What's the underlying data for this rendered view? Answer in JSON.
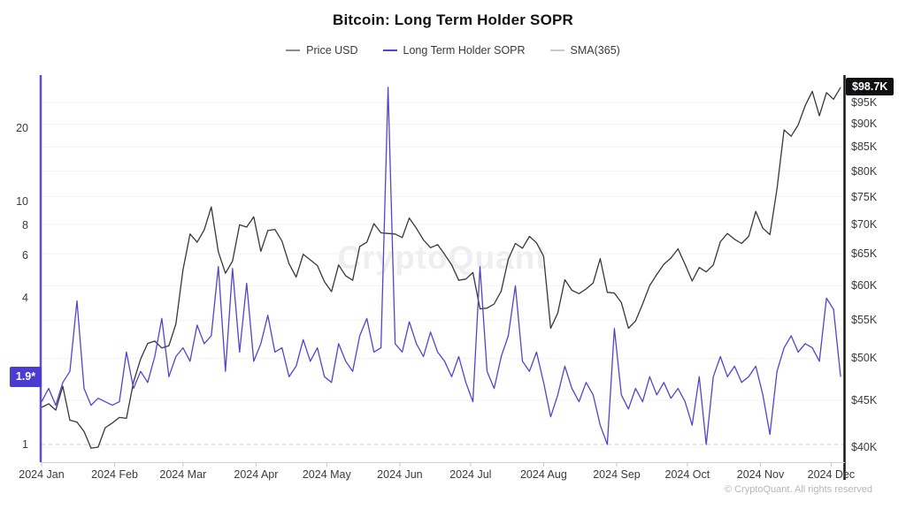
{
  "title": "Bitcoin: Long Term Holder SOPR",
  "watermark": "CryptoQuant",
  "copyright": "© CryptoQuant. All rights reserved",
  "legend": [
    {
      "label": "Price USD",
      "color": "#8a8a92"
    },
    {
      "label": "Long Term Holder SOPR",
      "color": "#5443d0"
    },
    {
      "label": "SMA(365)",
      "color": "#c9c9d1"
    }
  ],
  "left_axis": {
    "scale": "log",
    "ticks": [
      {
        "label": "20",
        "value": 20
      },
      {
        "label": "10",
        "value": 10
      },
      {
        "label": "8",
        "value": 8
      },
      {
        "label": "6",
        "value": 6
      },
      {
        "label": "4",
        "value": 4
      },
      {
        "label": "1",
        "value": 1
      }
    ],
    "current_badge": "1.9*",
    "current_value": 1.9,
    "axis_color": "#5e4dd6",
    "badge_color": "#4b3bd1"
  },
  "right_axis": {
    "scale": "log",
    "unit": "USD",
    "ticks": [
      {
        "label": "$95K",
        "value": 95
      },
      {
        "label": "$90K",
        "value": 90
      },
      {
        "label": "$85K",
        "value": 85
      },
      {
        "label": "$80K",
        "value": 80
      },
      {
        "label": "$75K",
        "value": 75
      },
      {
        "label": "$70K",
        "value": 70
      },
      {
        "label": "$65K",
        "value": 65
      },
      {
        "label": "$60K",
        "value": 60
      },
      {
        "label": "$55K",
        "value": 55
      },
      {
        "label": "$50K",
        "value": 50
      },
      {
        "label": "$45K",
        "value": 45
      },
      {
        "label": "$40K",
        "value": 40
      }
    ],
    "current_badge": "$98.7K",
    "current_value": 98.7,
    "axis_color": "#18181b"
  },
  "x_axis": {
    "labels": [
      {
        "label": "2024 Jan",
        "day": 0
      },
      {
        "label": "2024 Feb",
        "day": 31
      },
      {
        "label": "2024 Mar",
        "day": 60
      },
      {
        "label": "2024 Apr",
        "day": 91
      },
      {
        "label": "2024 May",
        "day": 121
      },
      {
        "label": "2024 Jun",
        "day": 152
      },
      {
        "label": "2024 Jul",
        "day": 182
      },
      {
        "label": "2024 Aug",
        "day": 213
      },
      {
        "label": "2024 Sep",
        "day": 244
      },
      {
        "label": "2024 Oct",
        "day": 274
      },
      {
        "label": "2024 Nov",
        "day": 305
      },
      {
        "label": "2024 Dec",
        "day": 335
      }
    ]
  },
  "chart_data": {
    "type": "line",
    "title": "Bitcoin: Long Term Holder SOPR",
    "start_date": "2024-01-01",
    "end_date": "2024-12-05",
    "step_days": 3,
    "grid": "faint horizontal at right-axis ticks",
    "legend_position": "top-center",
    "baseline": {
      "name": "SMA(365) / SOPR baseline",
      "value": 1.0,
      "style": "dashed",
      "color": "#d6d6dc"
    },
    "left_ylim": [
      0.95,
      32
    ],
    "right_ylim_usd_k": [
      38,
      105
    ],
    "series": [
      {
        "name": "Price USD",
        "axis": "right",
        "scale": "log",
        "unit": "USD thousands",
        "color": "#37373d",
        "values": [
          44.2,
          44.6,
          43.9,
          46.6,
          42.8,
          42.6,
          41.6,
          39.9,
          40.0,
          42.0,
          42.5,
          43.1,
          43.0,
          47.1,
          49.9,
          51.9,
          52.2,
          51.3,
          51.6,
          54.5,
          62.4,
          68.3,
          66.9,
          69.0,
          73.1,
          65.3,
          61.9,
          63.8,
          69.9,
          69.5,
          71.3,
          65.4,
          68.9,
          69.1,
          67.1,
          63.4,
          61.3,
          64.9,
          64.0,
          63.1,
          60.6,
          59.1,
          63.2,
          61.5,
          60.8,
          66.2,
          66.9,
          70.1,
          68.5,
          68.4,
          68.3,
          67.7,
          71.1,
          69.3,
          67.3,
          66.0,
          66.5,
          64.9,
          63.2,
          60.8,
          61.0,
          62.0,
          56.6,
          56.7,
          57.3,
          59.2,
          64.1,
          66.7,
          65.9,
          67.9,
          66.8,
          64.6,
          53.9,
          56.0,
          60.9,
          59.3,
          58.8,
          59.5,
          60.4,
          64.2,
          59.0,
          58.9,
          57.5,
          53.9,
          54.9,
          57.3,
          60.0,
          61.7,
          63.3,
          64.3,
          65.8,
          63.3,
          60.7,
          62.8,
          62.1,
          63.2,
          67.0,
          68.4,
          67.4,
          66.7,
          67.9,
          72.3,
          69.3,
          68.2,
          76.5,
          88.7,
          87.3,
          89.8,
          94.3,
          97.7,
          91.9,
          97.4,
          95.8,
          98.7
        ]
      },
      {
        "name": "Long Term Holder SOPR",
        "axis": "left",
        "scale": "log",
        "color": "#5443d0",
        "values": [
          1.5,
          1.7,
          1.45,
          1.8,
          2.0,
          3.9,
          1.7,
          1.45,
          1.55,
          1.5,
          1.45,
          1.5,
          2.4,
          1.7,
          2.0,
          1.8,
          2.3,
          3.3,
          1.9,
          2.3,
          2.5,
          2.2,
          3.1,
          2.6,
          2.8,
          5.4,
          2.0,
          5.3,
          2.4,
          4.6,
          2.2,
          2.6,
          3.4,
          2.4,
          2.5,
          1.9,
          2.1,
          2.7,
          2.2,
          2.5,
          1.9,
          1.8,
          2.6,
          2.2,
          2.0,
          2.8,
          3.3,
          2.4,
          2.5,
          29.5,
          2.6,
          2.4,
          3.2,
          2.6,
          2.3,
          2.9,
          2.4,
          2.2,
          1.9,
          2.3,
          1.8,
          1.5,
          5.4,
          2.0,
          1.7,
          2.3,
          2.8,
          4.5,
          2.2,
          2.0,
          2.4,
          1.8,
          1.3,
          1.6,
          2.1,
          1.7,
          1.5,
          1.8,
          1.6,
          1.2,
          1.0,
          3.0,
          1.6,
          1.4,
          1.7,
          1.5,
          1.9,
          1.6,
          1.8,
          1.55,
          1.7,
          1.5,
          1.2,
          1.9,
          1.0,
          1.9,
          2.3,
          1.9,
          2.1,
          1.8,
          1.9,
          2.1,
          1.6,
          1.1,
          2.0,
          2.5,
          2.8,
          2.4,
          2.6,
          2.5,
          2.2,
          4.0,
          3.6,
          1.9
        ]
      }
    ],
    "current_values": {
      "Long Term Holder SOPR": "1.9*",
      "Price USD": "$98.7K"
    }
  }
}
